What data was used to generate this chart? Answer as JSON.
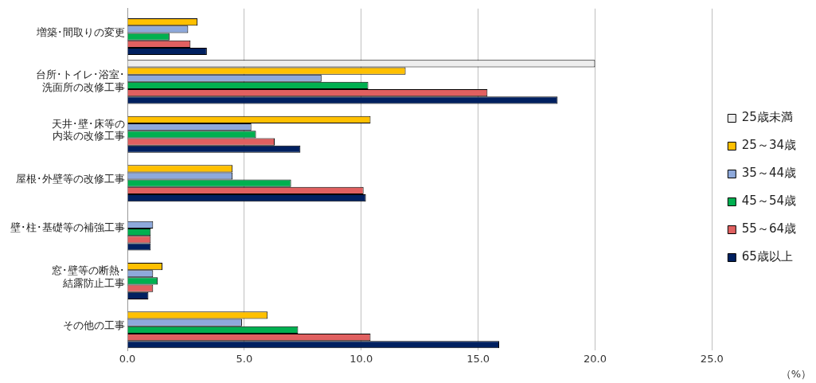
{
  "chart_data": {
    "type": "bar",
    "orientation": "horizontal",
    "annotations": [
      "（%）"
    ],
    "categories": [
      "増築･間取りの変更",
      "台所･トイレ･浴室･洗面所の改修工事",
      "天井･壁･床等の内装の改修工事",
      "屋根･外壁等の改修工事",
      "壁･柱･基礎等の補強工事",
      "窓･壁等の断熱･結露防止工事",
      "その他の工事"
    ],
    "series": [
      {
        "name": "25歳未満",
        "color": "#eeeeee",
        "values": [
          null,
          20.0,
          null,
          null,
          null,
          null,
          null
        ]
      },
      {
        "name": "25～34歳",
        "color": "#ffc000",
        "values": [
          3.0,
          11.9,
          10.4,
          4.5,
          null,
          1.5,
          6.0
        ]
      },
      {
        "name": "35～44歳",
        "color": "#8ea9db",
        "values": [
          2.6,
          8.3,
          5.3,
          4.5,
          1.1,
          1.1,
          4.9
        ]
      },
      {
        "name": "45～54歳",
        "color": "#00b050",
        "values": [
          1.8,
          10.3,
          5.5,
          7.0,
          1.0,
          1.3,
          7.3
        ]
      },
      {
        "name": "55～64歳",
        "color": "#e06060",
        "values": [
          2.7,
          15.4,
          6.3,
          10.1,
          1.0,
          1.1,
          10.4
        ]
      },
      {
        "name": "65歳以上",
        "color": "#002060",
        "values": [
          3.4,
          18.4,
          7.4,
          10.2,
          1.0,
          0.9,
          15.9
        ]
      }
    ],
    "xlim": [
      0,
      25
    ],
    "xticks": [
      {
        "value": 0,
        "label": "0.0"
      },
      {
        "value": 5,
        "label": "5.0"
      },
      {
        "value": 10,
        "label": "10.0"
      },
      {
        "value": 15,
        "label": "15.0"
      },
      {
        "value": 20,
        "label": "20.0"
      },
      {
        "value": 25,
        "label": "25.0"
      }
    ],
    "grid": "x",
    "legend": "right"
  }
}
